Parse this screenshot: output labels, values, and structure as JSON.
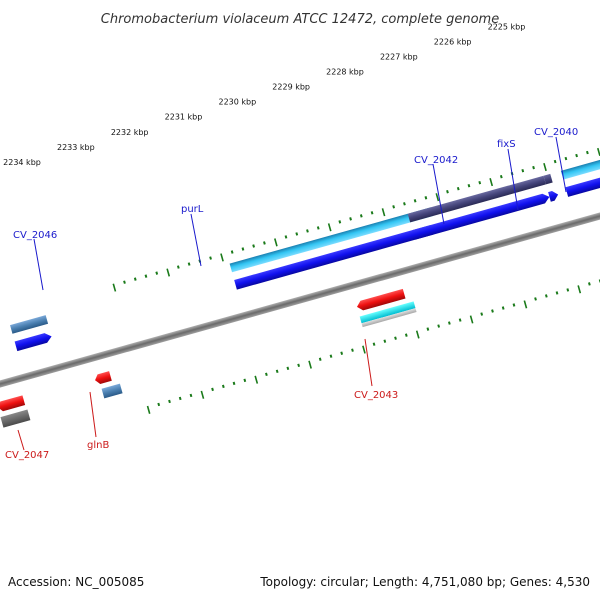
{
  "title": "Chromobacterium violaceum ATCC 12472, complete genome",
  "footer": {
    "accession": "Accession: NC_005085",
    "topology": "Topology: circular; Length: 4,751,080 bp; Genes: 4,530"
  },
  "ruler_ticks": [
    "2225 kbp",
    "2226 kbp",
    "2227 kbp",
    "2228 kbp",
    "2229 kbp",
    "2230 kbp",
    "2231 kbp",
    "2232 kbp",
    "2233 kbp",
    "2234 kbp"
  ],
  "forward_gene_labels": [
    "CV_2040",
    "fixS",
    "CV_2042",
    "purL",
    "CV_2046"
  ],
  "reverse_gene_labels": [
    "CV_2043",
    "glnB",
    "CV_2047"
  ],
  "colors": {
    "forward_label": "#1a1acc",
    "reverse_label": "#cc1a1a",
    "cds_forward": "#1010ee",
    "cds_reverse": "#ee1010",
    "gene_cyan": "#22bbee",
    "gene_slate": "#44447a",
    "gene_steel": "#4a7fb0",
    "backbone": "#808080",
    "tick": "#1a7a1a"
  }
}
